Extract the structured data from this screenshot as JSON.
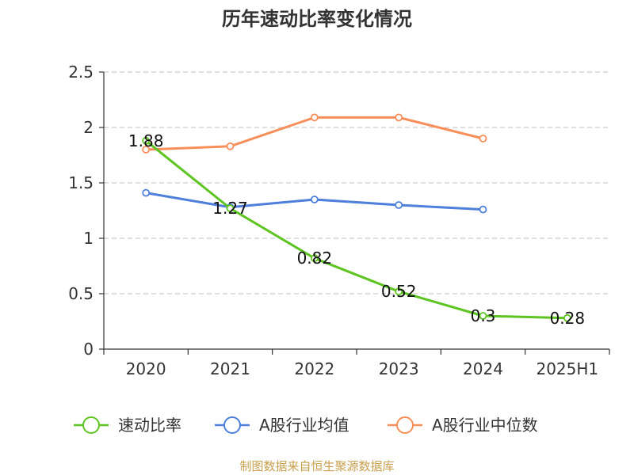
{
  "chart_data": {
    "type": "line",
    "title": "历年速动比率变化情况",
    "xlabel": "",
    "ylabel": "",
    "categories": [
      "2020",
      "2021",
      "2022",
      "2023",
      "2024",
      "2025H1"
    ],
    "ylim": [
      0,
      2.5
    ],
    "yticks": [
      "0",
      "0.5",
      "1",
      "1.5",
      "2",
      "2.5"
    ],
    "grid": true,
    "legend_position": "bottom",
    "series": [
      {
        "name": "速动比率",
        "color": "#5ec421",
        "values": [
          1.88,
          1.27,
          0.82,
          0.52,
          0.3,
          0.28
        ],
        "labels": [
          "1.88",
          "1.27",
          "0.82",
          "0.52",
          "0.3",
          "0.28"
        ],
        "show_labels": true
      },
      {
        "name": "A股行业均值",
        "color": "#4e7fdb",
        "values": [
          1.41,
          1.28,
          1.35,
          1.3,
          1.26,
          null
        ],
        "show_labels": false
      },
      {
        "name": "A股行业中位数",
        "color": "#f88e59",
        "values": [
          1.8,
          1.83,
          2.09,
          2.09,
          1.9,
          null
        ],
        "show_labels": false
      }
    ]
  },
  "footer": {
    "source": "制图数据来自恒生聚源数据库"
  }
}
